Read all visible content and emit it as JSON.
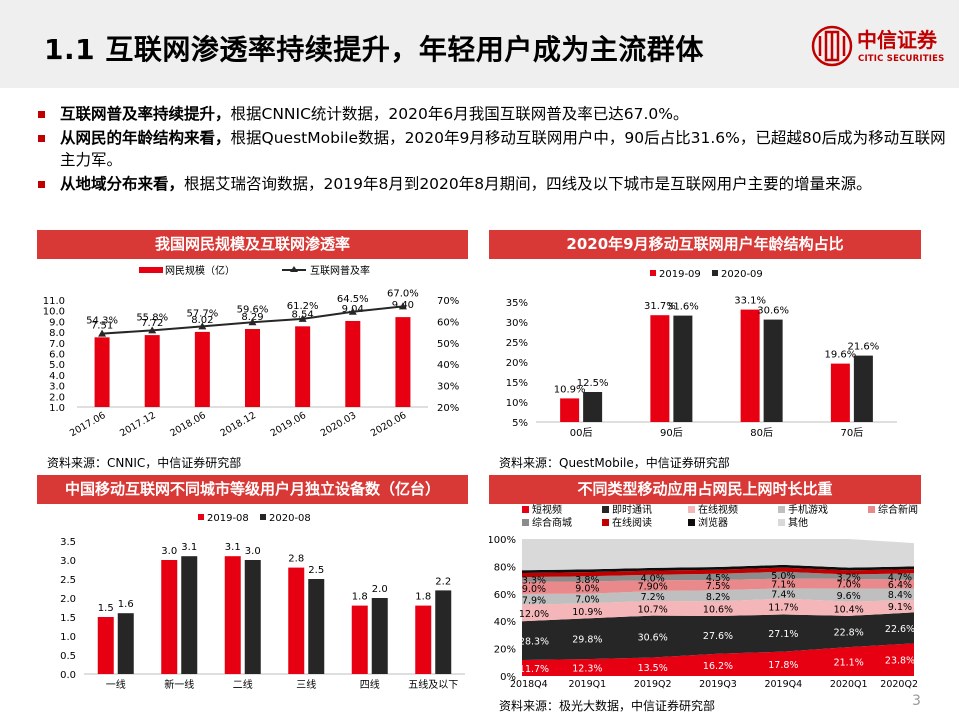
{
  "header": {
    "title": "1.1 互联网渗透率持续提升，年轻用户成为主流群体",
    "logo_cn": "中信证券",
    "logo_en": "CITIC SECURITIES"
  },
  "bullets": [
    {
      "bold": "互联网普及率持续提升，",
      "text": "根据CNNIC统计数据，2020年6月我国互联网普及率已达67.0%。"
    },
    {
      "bold": "从网民的年龄结构来看，",
      "text": "根据QuestMobile数据，2020年9月移动互联网用户中，90后占比31.6%，已超越80后成为移动互联网主力军。"
    },
    {
      "bold": "从地域分布来看，",
      "text": "根据艾瑞咨询数据，2019年8月到2020年8月期间，四线及以下城市是互联网用户主要的增量来源。"
    }
  ],
  "page_number": "3",
  "colors": {
    "red": "#e60012",
    "dark": "#262626",
    "header_red": "#d83936"
  },
  "chart_data": [
    {
      "type": "bar",
      "title": "我国网民规模及互联网渗透率",
      "source": "资料来源：CNNIC，中信证券研究部",
      "categories": [
        "2017.06",
        "2017.12",
        "2018.06",
        "2018.12",
        "2019.06",
        "2020.03",
        "2020.06"
      ],
      "series": [
        {
          "name": "网民规模（亿）",
          "type": "bar",
          "axis": "left",
          "values": [
            7.51,
            7.72,
            8.02,
            8.29,
            8.54,
            9.04,
            9.4
          ],
          "labels": [
            "7.51",
            "7.72",
            "8.02",
            "8.29",
            "8.54",
            "9.04",
            "9.40"
          ]
        },
        {
          "name": "互联网普及率",
          "type": "line",
          "axis": "right",
          "values": [
            54.3,
            55.8,
            57.7,
            59.6,
            61.2,
            64.5,
            67.0
          ],
          "labels": [
            "54.3%",
            "55.8%",
            "57.7%",
            "59.6%",
            "61.2%",
            "64.5%",
            "67.0%"
          ]
        }
      ],
      "ylim_left": [
        1.0,
        11.0
      ],
      "yticks_left": [
        "11.0",
        "10.0",
        "9.0",
        "8.0",
        "7.0",
        "6.0",
        "5.0",
        "4.0",
        "3.0",
        "2.0",
        "1.0"
      ],
      "ylim_right": [
        20,
        70
      ],
      "yticks_right": [
        "70%",
        "60%",
        "50%",
        "40%",
        "30%",
        "20%"
      ],
      "legend": "top"
    },
    {
      "type": "bar",
      "title": "2020年9月移动互联网用户年龄结构占比",
      "source": "资料来源：QuestMobile，中信证券研究部",
      "categories": [
        "00后",
        "90后",
        "80后",
        "70后"
      ],
      "series": [
        {
          "name": "2019-09",
          "values": [
            10.9,
            31.7,
            33.1,
            19.6
          ],
          "labels": [
            "10.9%",
            "31.7%",
            "33.1%",
            "19.6%"
          ]
        },
        {
          "name": "2020-09",
          "values": [
            12.5,
            31.6,
            30.6,
            21.6
          ],
          "labels": [
            "12.5%",
            "31.6%",
            "30.6%",
            "21.6%"
          ]
        }
      ],
      "ylim": [
        5,
        35
      ],
      "yticks": [
        "35%",
        "30%",
        "25%",
        "20%",
        "15%",
        "10%",
        "5%"
      ],
      "legend": "top"
    },
    {
      "type": "bar",
      "title": "中国移动互联网不同城市等级用户月独立设备数（亿台）",
      "source": "",
      "categories": [
        "一线",
        "新一线",
        "二线",
        "三线",
        "四线",
        "五线及以下"
      ],
      "series": [
        {
          "name": "2019-08",
          "values": [
            1.5,
            3.0,
            3.1,
            2.8,
            1.8,
            1.8
          ],
          "labels": [
            "1.5",
            "3.0",
            "3.1",
            "2.8",
            "1.8",
            "1.8"
          ]
        },
        {
          "name": "2020-08",
          "values": [
            1.6,
            3.1,
            3.0,
            2.5,
            2.0,
            2.2
          ],
          "labels": [
            "1.6",
            "3.1",
            "3.0",
            "2.5",
            "2.0",
            "2.2"
          ]
        }
      ],
      "ylim": [
        0,
        3.5
      ],
      "yticks": [
        "3.5",
        "3.0",
        "2.5",
        "2.0",
        "1.5",
        "1.0",
        "0.5",
        "0.0"
      ],
      "legend": "top"
    },
    {
      "type": "area",
      "title": "不同类型移动应用占网民上网时长比重",
      "source": "资料来源：极光大数据，中信证券研究部",
      "categories": [
        "2018Q4",
        "2019Q1",
        "2019Q2",
        "2019Q3",
        "2019Q4",
        "2020Q1",
        "2020Q2"
      ],
      "series": [
        {
          "name": "短视频",
          "color": "#e60012",
          "values": [
            11.7,
            12.3,
            13.5,
            16.2,
            17.8,
            21.1,
            23.8
          ],
          "labels": [
            "11.7%",
            "12.3%",
            "13.5%",
            "16.2%",
            "17.8%",
            "21.1%",
            "23.8%"
          ]
        },
        {
          "name": "即时通讯",
          "color": "#262626",
          "values": [
            28.3,
            29.8,
            30.6,
            27.6,
            27.1,
            22.8,
            22.6
          ],
          "labels": [
            "28.3%",
            "29.8%",
            "30.6%",
            "27.6%",
            "27.1%",
            "22.8%",
            "22.6%"
          ]
        },
        {
          "name": "在线视频",
          "color": "#f4b6b8",
          "values": [
            12.0,
            10.9,
            10.7,
            10.6,
            11.7,
            10.4,
            9.1
          ],
          "labels": [
            "12.0%",
            "10.9%",
            "10.7%",
            "10.6%",
            "11.7%",
            "10.4%",
            "9.1%"
          ]
        },
        {
          "name": "手机游戏",
          "color": "#bfbfbf",
          "values": [
            7.9,
            7.0,
            7.2,
            8.2,
            7.4,
            9.6,
            8.4
          ],
          "labels": [
            "7.9%",
            "7.0%",
            "7.2%",
            "8.2%",
            "7.4%",
            "9.6%",
            "8.4%"
          ]
        },
        {
          "name": "综合新闻",
          "color": "#e9898c",
          "values": [
            9.0,
            9.0,
            7.9,
            7.5,
            7.1,
            7.0,
            6.4
          ],
          "labels": [
            "9.0%",
            "9.0%",
            "7.90%",
            "7.5%",
            "7.1%",
            "7.0%",
            "6.4%"
          ]
        },
        {
          "name": "综合商城",
          "color": "#8c8c8c",
          "values": [
            3.3,
            3.8,
            4.0,
            4.5,
            5.0,
            3.2,
            4.7
          ],
          "labels": [
            "3.3%",
            "3.8%",
            "4.0%",
            "4.5%",
            "5.0%",
            "3.2%",
            "4.7%"
          ]
        },
        {
          "name": "在线阅读",
          "color": "#c00000",
          "values": [
            3.0,
            3.0,
            3.0,
            3.0,
            3.0,
            3.0,
            3.0
          ],
          "labels": []
        },
        {
          "name": "浏览器",
          "color": "#0d0d0d",
          "values": [
            2.0,
            2.0,
            2.0,
            2.0,
            2.0,
            2.0,
            2.0
          ],
          "labels": []
        },
        {
          "name": "其他",
          "color": "#d9d9d9",
          "values": [
            22.8,
            22.2,
            21.1,
            20.4,
            18.9,
            20.9,
            17.0
          ],
          "labels": []
        }
      ],
      "ylim": [
        0,
        100
      ],
      "yticks": [
        "100%",
        "80%",
        "60%",
        "40%",
        "20%",
        "0%"
      ],
      "legend": "top"
    }
  ]
}
